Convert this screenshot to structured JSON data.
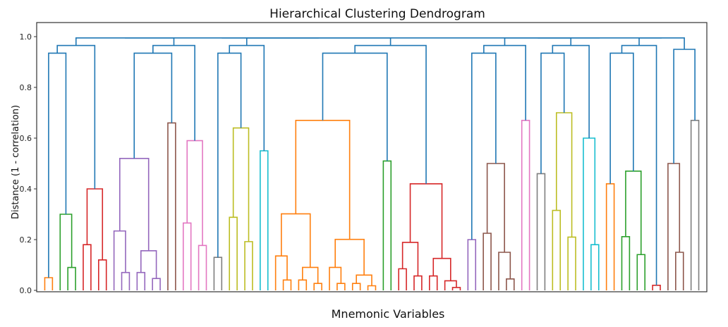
{
  "chart_data": {
    "type": "dendrogram",
    "title": "Hierarchical Clustering Dendrogram",
    "xlabel": "Mnemonic Variables",
    "ylabel": "Distance (1 - correlation)",
    "ylim": [
      0,
      1.0
    ],
    "yticks": [
      "0.0",
      "0.2",
      "0.4",
      "0.6",
      "0.8",
      "1.0"
    ],
    "grid": false,
    "colors": {
      "above_threshold": "#1f77b4",
      "orange": "#ff7f0e",
      "green": "#2ca02c",
      "red": "#d62728",
      "purple": "#9467bd",
      "brown": "#8c564b",
      "pink": "#e377c2",
      "gray": "#7f7f7f",
      "olive": "#bcbd22",
      "cyan": "#17becf"
    },
    "clusters": [
      {
        "color": "orange",
        "leaves": 2,
        "height": 0.05
      },
      {
        "color": "green",
        "leaves": 3,
        "height": 0.3
      },
      {
        "color": "red",
        "leaves": 4,
        "height": 0.4
      },
      {
        "color": "purple",
        "leaves": 7,
        "height": 0.52
      },
      {
        "color": "brown",
        "leaves": 2,
        "height": 0.66
      },
      {
        "color": "pink",
        "leaves": 4,
        "height": 0.59
      },
      {
        "color": "gray",
        "leaves": 2,
        "height": 0.13
      },
      {
        "color": "olive",
        "leaves": 4,
        "height": 0.64
      },
      {
        "color": "cyan",
        "leaves": 2,
        "height": 0.55
      },
      {
        "color": "orange",
        "leaves": 14,
        "height": 0.67
      },
      {
        "color": "green",
        "leaves": 2,
        "height": 0.51
      },
      {
        "color": "red",
        "leaves": 9,
        "height": 0.42
      },
      {
        "color": "purple",
        "leaves": 2,
        "height": 0.2
      },
      {
        "color": "brown",
        "leaves": 5,
        "height": 0.5
      },
      {
        "color": "pink",
        "leaves": 2,
        "height": 0.67
      },
      {
        "color": "gray",
        "leaves": 2,
        "height": 0.46
      },
      {
        "color": "olive",
        "leaves": 4,
        "height": 0.7
      },
      {
        "color": "cyan",
        "leaves": 3,
        "height": 0.6
      },
      {
        "color": "orange",
        "leaves": 2,
        "height": 0.42
      },
      {
        "color": "green",
        "leaves": 4,
        "height": 0.47
      },
      {
        "color": "red",
        "leaves": 2,
        "height": 0.02
      },
      {
        "color": "brown",
        "leaves": 3,
        "height": 0.5
      },
      {
        "color": "gray",
        "leaves": 2,
        "height": 0.67
      }
    ]
  }
}
